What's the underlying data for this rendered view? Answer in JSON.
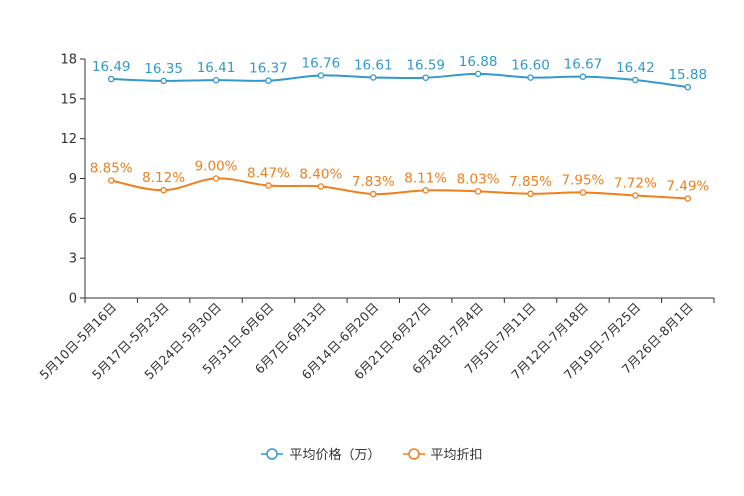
{
  "chart_data": {
    "type": "line",
    "title": "",
    "xlabel": "",
    "ylabel": "",
    "ylim": [
      0,
      18
    ],
    "yticks": [
      0,
      3,
      6,
      9,
      12,
      15,
      18
    ],
    "grid": false,
    "legend_position": "bottom-center",
    "categories": [
      "5月10日-5月16日",
      "5月17日-5月23日",
      "5月24日-5月30日",
      "5月31日-6月6日",
      "6月7日-6月13日",
      "6月14日-6月20日",
      "6月21日-6月27日",
      "6月28日-7月4日",
      "7月5日-7月11日",
      "7月12日-7月18日",
      "7月19日-7月25日",
      "7月26日-8月1日"
    ],
    "series": [
      {
        "name": "平均价格（万）",
        "color": "#3399cc",
        "values": [
          16.49,
          16.35,
          16.41,
          16.37,
          16.76,
          16.61,
          16.59,
          16.88,
          16.6,
          16.67,
          16.42,
          15.88
        ],
        "labels": [
          "16.49",
          "16.35",
          "16.41",
          "16.37",
          "16.76",
          "16.61",
          "16.59",
          "16.88",
          "16.60",
          "16.67",
          "16.42",
          "15.88"
        ]
      },
      {
        "name": "平均折扣",
        "color": "#f07f1c",
        "values": [
          8.85,
          8.12,
          9.0,
          8.47,
          8.4,
          7.83,
          8.11,
          8.03,
          7.85,
          7.95,
          7.72,
          7.49
        ],
        "labels": [
          "8.85%",
          "8.12%",
          "9.00%",
          "8.47%",
          "8.40%",
          "7.83%",
          "8.11%",
          "8.03%",
          "7.85%",
          "7.95%",
          "7.72%",
          "7.49%"
        ]
      }
    ]
  }
}
